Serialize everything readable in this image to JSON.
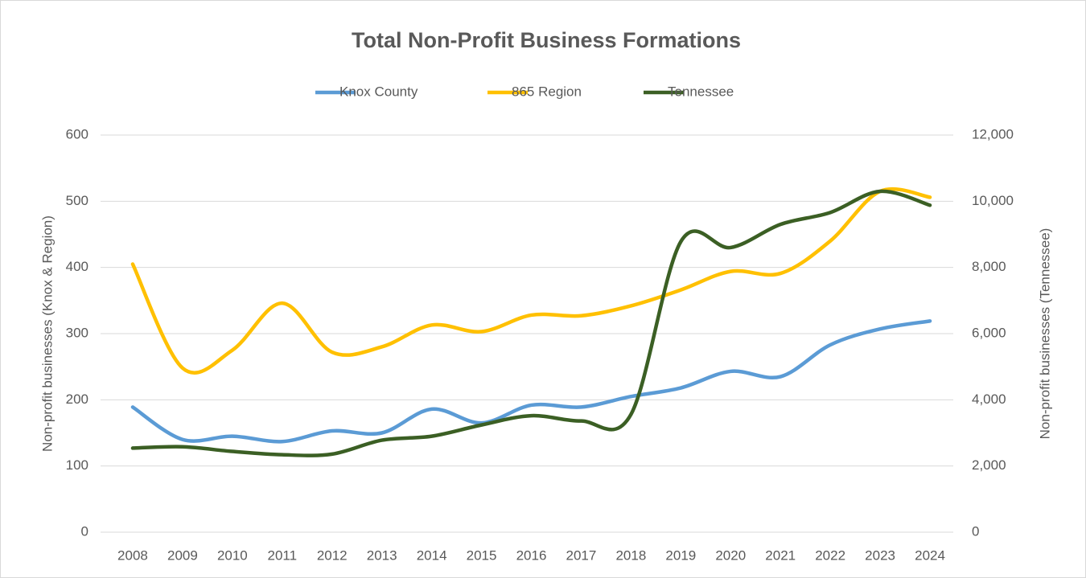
{
  "chart_data": {
    "type": "line",
    "title": "Total Non-Profit Business Formations",
    "categories": [
      "2008",
      "2009",
      "2010",
      "2011",
      "2012",
      "2013",
      "2014",
      "2015",
      "2016",
      "2017",
      "2018",
      "2019",
      "2020",
      "2021",
      "2022",
      "2023",
      "2024"
    ],
    "series": [
      {
        "name": "Knox County",
        "color": "#5b9bd5",
        "values": [
          189,
          140,
          145,
          137,
          153,
          150,
          186,
          165,
          192,
          189,
          205,
          218,
          243,
          235,
          283,
          307,
          319
        ]
      },
      {
        "name": "865 Region",
        "color": "#ffc000",
        "values": [
          405,
          248,
          275,
          346,
          272,
          280,
          313,
          303,
          328,
          327,
          342,
          366,
          394,
          391,
          440,
          515,
          506
        ]
      },
      {
        "name": "Tennessee",
        "color": "#3b5f24",
        "axis": "y2",
        "values": [
          2540,
          2580,
          2440,
          2340,
          2360,
          2780,
          2900,
          3240,
          3520,
          3360,
          3560,
          8780,
          8600,
          9300,
          9660,
          10300,
          9880
        ]
      }
    ],
    "y_label": "Non-profit businesses (Knox & Region)",
    "y2_label": "Non-profit businesses (Tennessee)",
    "ylim": [
      0,
      600
    ],
    "yticks": [
      0,
      100,
      200,
      300,
      400,
      500,
      600
    ],
    "y2lim": [
      0,
      12000
    ],
    "y2ticks": [
      0,
      {
        "value": 2000,
        "label": "2,000"
      },
      {
        "value": 4000,
        "label": "4,000"
      },
      {
        "value": 6000,
        "label": "6,000"
      },
      {
        "value": 8000,
        "label": "8,000"
      },
      {
        "value": 10000,
        "label": "10,000"
      },
      {
        "value": 12000,
        "label": "12,000"
      }
    ],
    "grid": true,
    "legend": "top"
  }
}
